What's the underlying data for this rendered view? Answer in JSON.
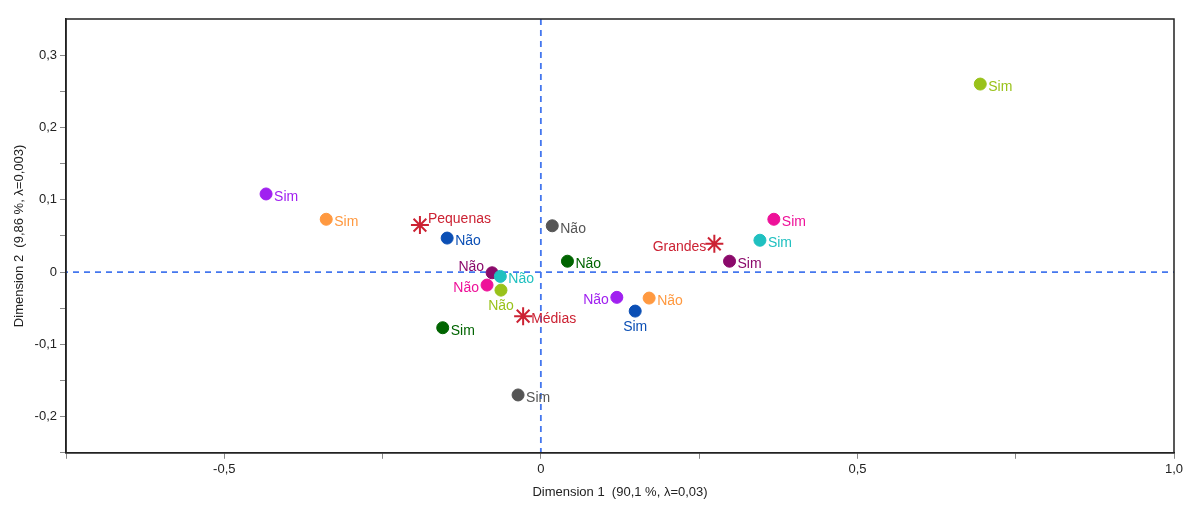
{
  "chart_data": {
    "type": "scatter",
    "xlabel": "Dimension 1  (90,1 %, λ=0,03)",
    "ylabel": "Dimension 2  (9,86 %, λ=0,003)",
    "xlim": [
      -0.75,
      1.0
    ],
    "ylim": [
      -0.25,
      0.35
    ],
    "xticks": [
      {
        "value": -0.75,
        "label": null
      },
      {
        "value": -0.5,
        "label": "-0,5"
      },
      {
        "value": -0.25,
        "label": null
      },
      {
        "value": 0,
        "label": "0"
      },
      {
        "value": 0.25,
        "label": null
      },
      {
        "value": 0.5,
        "label": "0,5"
      },
      {
        "value": 0.75,
        "label": null
      },
      {
        "value": 1.0,
        "label": "1,0"
      }
    ],
    "yticks": [
      {
        "value": -0.25,
        "label": null
      },
      {
        "value": -0.2,
        "label": "-0,2"
      },
      {
        "value": -0.15,
        "label": null
      },
      {
        "value": -0.1,
        "label": "-0,1"
      },
      {
        "value": -0.05,
        "label": null
      },
      {
        "value": 0,
        "label": "0"
      },
      {
        "value": 0.05,
        "label": null
      },
      {
        "value": 0.1,
        "label": "0,1"
      },
      {
        "value": 0.15,
        "label": null
      },
      {
        "value": 0.2,
        "label": "0,2"
      },
      {
        "value": 0.25,
        "label": null
      },
      {
        "value": 0.3,
        "label": "0,3"
      }
    ],
    "grid": false,
    "ref_lines": [
      {
        "axis": "x",
        "value": 0,
        "color": "#4477ee",
        "line_style": "dashed"
      },
      {
        "axis": "y",
        "value": 0,
        "color": "#4477ee",
        "line_style": "dashed"
      }
    ],
    "series": [
      {
        "color": "#a020f0",
        "marker": "circle",
        "x": [
          -0.434,
          0.12
        ],
        "values": [
          0.108,
          -0.035
        ],
        "value_labels": [
          "Sim",
          "Não"
        ]
      },
      {
        "color": "#ff9940",
        "marker": "circle",
        "x": [
          -0.339,
          0.171
        ],
        "values": [
          0.073,
          -0.036
        ],
        "value_labels": [
          "Sim",
          "Não"
        ]
      },
      {
        "color": "#0b4fb5",
        "marker": "circle",
        "x": [
          -0.148,
          0.149
        ],
        "values": [
          0.047,
          -0.054
        ],
        "value_labels": [
          "Não",
          "Sim"
        ]
      },
      {
        "color": "#555555",
        "marker": "circle",
        "x": [
          0.018,
          -0.036
        ],
        "values": [
          0.064,
          -0.17
        ],
        "value_labels": [
          "Não",
          "Sim"
        ]
      },
      {
        "color": "#006400",
        "marker": "circle",
        "x": [
          0.042,
          -0.155
        ],
        "values": [
          0.015,
          -0.077
        ],
        "value_labels": [
          "Não",
          "Sim"
        ]
      },
      {
        "color": "#20c0c0",
        "marker": "circle",
        "x": [
          -0.064,
          0.346
        ],
        "values": [
          -0.006,
          0.044
        ],
        "value_labels": [
          "Não",
          "Sim"
        ]
      },
      {
        "color": "#ee1199",
        "marker": "circle",
        "x": [
          -0.085,
          0.368
        ],
        "values": [
          -0.018,
          0.073
        ],
        "value_labels": [
          "Não",
          "Sim"
        ]
      },
      {
        "color": "#8b0a6b",
        "marker": "circle",
        "x": [
          -0.077,
          0.298
        ],
        "values": [
          -0.001,
          0.015
        ],
        "value_labels": [
          "Não",
          "Sim"
        ]
      },
      {
        "color": "#99c21a",
        "marker": "circle",
        "x": [
          -0.063,
          0.694
        ],
        "values": [
          -0.025,
          0.26
        ],
        "value_labels": [
          "Não",
          "Sim"
        ]
      },
      {
        "color": "#cc2233",
        "marker": "cross",
        "x": [
          -0.191,
          -0.028,
          0.274
        ],
        "values": [
          0.065,
          -0.061,
          0.039
        ],
        "value_labels": [
          "Pequenas",
          "Médias",
          "Grandes"
        ]
      }
    ]
  }
}
